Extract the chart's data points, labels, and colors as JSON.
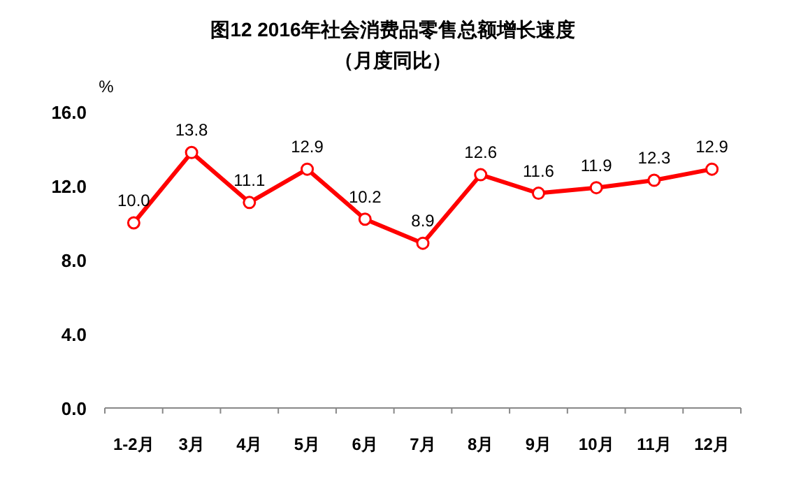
{
  "chart_data": {
    "type": "line",
    "title": "图12 2016年社会消费品零售总额增长速度",
    "subtitle": "（月度同比）",
    "ylabel": "%",
    "categories": [
      "1-2月",
      "3月",
      "4月",
      "5月",
      "6月",
      "7月",
      "8月",
      "9月",
      "10月",
      "11月",
      "12月"
    ],
    "series": [
      {
        "color": "#ff0000",
        "values": [
          10.0,
          13.8,
          11.1,
          12.9,
          10.2,
          8.9,
          12.6,
          11.6,
          11.9,
          12.3,
          12.9
        ],
        "value_labels": [
          "10.0",
          "13.8",
          "11.1",
          "12.9",
          "10.2",
          "8.9",
          "12.6",
          "11.6",
          "11.9",
          "12.3",
          "12.9"
        ]
      }
    ],
    "ylim": [
      0,
      16
    ],
    "yticks": [
      {
        "value": 0,
        "label": "0.0"
      },
      {
        "value": 4,
        "label": "4.0"
      },
      {
        "value": 8,
        "label": "8.0"
      },
      {
        "value": 12,
        "label": "12.0"
      },
      {
        "value": 16,
        "label": "16.0"
      }
    ],
    "marker": "circle",
    "line_style": "solid"
  }
}
